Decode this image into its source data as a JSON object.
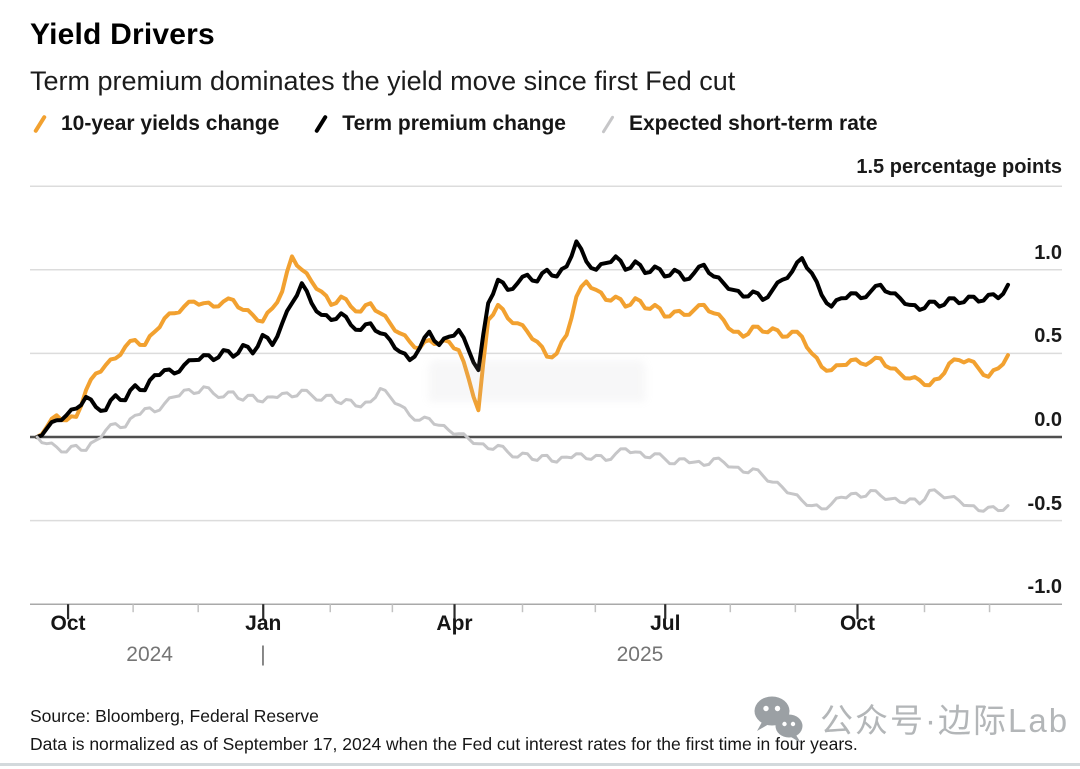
{
  "header": {
    "title": "Yield Drivers",
    "subtitle": "Term premium dominates the yield move since first Fed cut"
  },
  "legend": {
    "items": [
      {
        "label": "10-year yields change",
        "color": "#F2A130"
      },
      {
        "label": "Term premium change",
        "color": "#000000"
      },
      {
        "label": "Expected short-term rate",
        "color": "#C6C6C8"
      }
    ]
  },
  "footer": {
    "source": "Source: Bloomberg, Federal Reserve",
    "note": "Data is normalized as of September 17, 2024 when the Fed cut interest rates for the first time in four years."
  },
  "watermark": {
    "icon": "wechat-icon",
    "text": "公众号·边际Lab"
  },
  "colors": {
    "grid": "#DCDCDC",
    "zero_line": "#4F4F4F",
    "axis_line": "#A9A9A9",
    "tick_major": "#2B2B2B",
    "tick_minor": "#C2C2C2",
    "bottom_bar": "#D3D9DC"
  },
  "chart_data": {
    "type": "line",
    "title": "Yield Drivers",
    "subtitle": "Term premium dominates the yield move since first Fed cut",
    "unit_label": "1.5 percentage points",
    "ylabel": "percentage points",
    "ylim": [
      -1.0,
      1.5
    ],
    "grid": true,
    "legend_position": "top",
    "x_domain_note": "mid-September 2024 through early December 2025, normalized at 0 on 2024-09-17",
    "y_ticks": [
      {
        "label": "1.0",
        "value": 1.0
      },
      {
        "label": "0.5",
        "value": 0.5
      },
      {
        "label": "0.0",
        "value": 0.0
      },
      {
        "label": "-0.5",
        "value": -0.5
      },
      {
        "label": "-1.0",
        "value": -1.0
      }
    ],
    "top_gridline_value": 1.5,
    "x_ticks": [
      {
        "label": "Oct",
        "f": 0.032
      },
      {
        "label": "Jan",
        "f": 0.233
      },
      {
        "label": "Apr",
        "f": 0.43
      },
      {
        "label": "Jul",
        "f": 0.647
      },
      {
        "label": "Oct",
        "f": 0.845
      }
    ],
    "x_minor_ticks": [
      0.099,
      0.166,
      0.302,
      0.366,
      0.5,
      0.575,
      0.714,
      0.781,
      0.914,
      0.981
    ],
    "year_labels": [
      {
        "label": "2024",
        "f": 0.116
      },
      {
        "label": "|",
        "f": 0.2327
      },
      {
        "label": "2025",
        "f": 0.621
      }
    ],
    "series": [
      {
        "name": "10-year yields change",
        "color": "#F2A130",
        "width": 4,
        "values": [
          0.0,
          0.06,
          0.13,
          0.1,
          0.12,
          0.28,
          0.38,
          0.43,
          0.47,
          0.54,
          0.58,
          0.55,
          0.63,
          0.71,
          0.74,
          0.78,
          0.81,
          0.8,
          0.78,
          0.81,
          0.82,
          0.76,
          0.73,
          0.69,
          0.77,
          0.87,
          1.08,
          1.0,
          0.93,
          0.87,
          0.79,
          0.84,
          0.78,
          0.75,
          0.8,
          0.74,
          0.68,
          0.62,
          0.57,
          0.53,
          0.58,
          0.56,
          0.57,
          0.52,
          0.35,
          0.16,
          0.7,
          0.79,
          0.71,
          0.68,
          0.63,
          0.57,
          0.48,
          0.5,
          0.61,
          0.84,
          0.93,
          0.88,
          0.82,
          0.84,
          0.78,
          0.83,
          0.77,
          0.79,
          0.72,
          0.75,
          0.73,
          0.76,
          0.79,
          0.74,
          0.7,
          0.63,
          0.6,
          0.66,
          0.63,
          0.65,
          0.6,
          0.63,
          0.6,
          0.5,
          0.42,
          0.4,
          0.43,
          0.46,
          0.44,
          0.45,
          0.47,
          0.41,
          0.38,
          0.35,
          0.34,
          0.31,
          0.35,
          0.44,
          0.46,
          0.46,
          0.41,
          0.36,
          0.41,
          0.49
        ]
      },
      {
        "name": "Term premium change",
        "color": "#000000",
        "width": 4,
        "values": [
          0.0,
          0.05,
          0.1,
          0.13,
          0.17,
          0.24,
          0.18,
          0.16,
          0.25,
          0.22,
          0.31,
          0.28,
          0.37,
          0.4,
          0.38,
          0.43,
          0.46,
          0.49,
          0.46,
          0.52,
          0.48,
          0.55,
          0.5,
          0.61,
          0.55,
          0.68,
          0.8,
          0.92,
          0.8,
          0.73,
          0.7,
          0.74,
          0.67,
          0.64,
          0.68,
          0.62,
          0.58,
          0.51,
          0.46,
          0.53,
          0.63,
          0.55,
          0.6,
          0.64,
          0.52,
          0.4,
          0.8,
          0.94,
          0.88,
          0.92,
          0.97,
          0.93,
          1.0,
          0.96,
          1.02,
          1.17,
          1.05,
          1.0,
          1.04,
          1.08,
          1.0,
          1.05,
          0.98,
          1.02,
          0.96,
          1.0,
          0.94,
          0.98,
          1.03,
          0.96,
          0.92,
          0.88,
          0.84,
          0.87,
          0.82,
          0.88,
          0.94,
          0.99,
          1.07,
          0.98,
          0.85,
          0.78,
          0.83,
          0.86,
          0.83,
          0.87,
          0.91,
          0.86,
          0.83,
          0.79,
          0.76,
          0.81,
          0.78,
          0.83,
          0.8,
          0.84,
          0.81,
          0.85,
          0.83,
          0.91
        ]
      },
      {
        "name": "Expected short-term rate",
        "color": "#C6C6C8",
        "width": 3,
        "values": [
          0.0,
          -0.04,
          -0.06,
          -0.09,
          -0.05,
          -0.08,
          -0.02,
          0.04,
          0.08,
          0.06,
          0.13,
          0.17,
          0.15,
          0.2,
          0.24,
          0.28,
          0.26,
          0.3,
          0.26,
          0.24,
          0.27,
          0.22,
          0.25,
          0.21,
          0.24,
          0.26,
          0.24,
          0.28,
          0.25,
          0.22,
          0.25,
          0.2,
          0.22,
          0.18,
          0.21,
          0.29,
          0.24,
          0.19,
          0.13,
          0.1,
          0.11,
          0.07,
          0.04,
          0.02,
          -0.01,
          -0.04,
          -0.07,
          -0.05,
          -0.09,
          -0.12,
          -0.1,
          -0.14,
          -0.11,
          -0.15,
          -0.12,
          -0.1,
          -0.13,
          -0.11,
          -0.14,
          -0.1,
          -0.07,
          -0.09,
          -0.12,
          -0.1,
          -0.13,
          -0.16,
          -0.13,
          -0.15,
          -0.17,
          -0.13,
          -0.15,
          -0.18,
          -0.21,
          -0.19,
          -0.23,
          -0.27,
          -0.3,
          -0.34,
          -0.38,
          -0.41,
          -0.43,
          -0.4,
          -0.36,
          -0.34,
          -0.36,
          -0.32,
          -0.35,
          -0.37,
          -0.39,
          -0.37,
          -0.4,
          -0.32,
          -0.34,
          -0.36,
          -0.38,
          -0.41,
          -0.44,
          -0.42,
          -0.44,
          -0.41
        ]
      }
    ]
  }
}
